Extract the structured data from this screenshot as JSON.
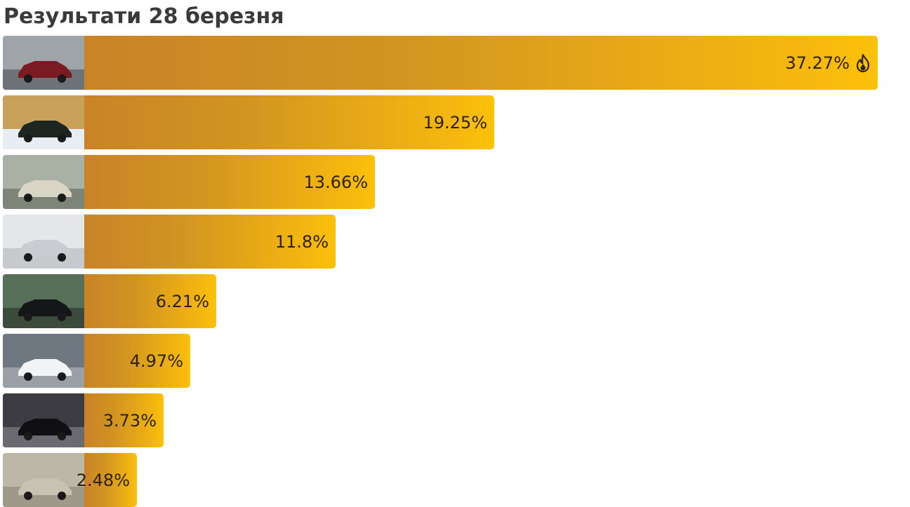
{
  "title": "Результати 28 березня",
  "chart_data": {
    "type": "bar",
    "orientation": "horizontal",
    "title": "Результати 28 березня",
    "xlabel": "",
    "ylabel": "",
    "grid": false,
    "categories": [
      "",
      "",
      "",
      "",
      "",
      "",
      "",
      ""
    ],
    "values": [
      37.27,
      19.25,
      13.66,
      11.8,
      6.21,
      4.97,
      3.73,
      2.48
    ],
    "labels": [
      "37.27%",
      "19.25%",
      "13.66%",
      "11.8%",
      "6.21%",
      "4.97%",
      "3.73%",
      "2.48%"
    ],
    "unit": "%",
    "leader_icon": "fire-icon",
    "thumbnails": [
      "red-sedan-photo",
      "dark-suv-snow-photo",
      "white-offroad-photo",
      "silver-sedan-photo",
      "black-sedan-mountains-photo",
      "white-hatchback-photo",
      "black-sedan-smoke-photo",
      "grey-car-photo"
    ],
    "colors": {
      "bar_start": "#c98328",
      "bar_end": "#fcc109",
      "text": "#2c2205",
      "title": "#3a3a3a"
    }
  }
}
